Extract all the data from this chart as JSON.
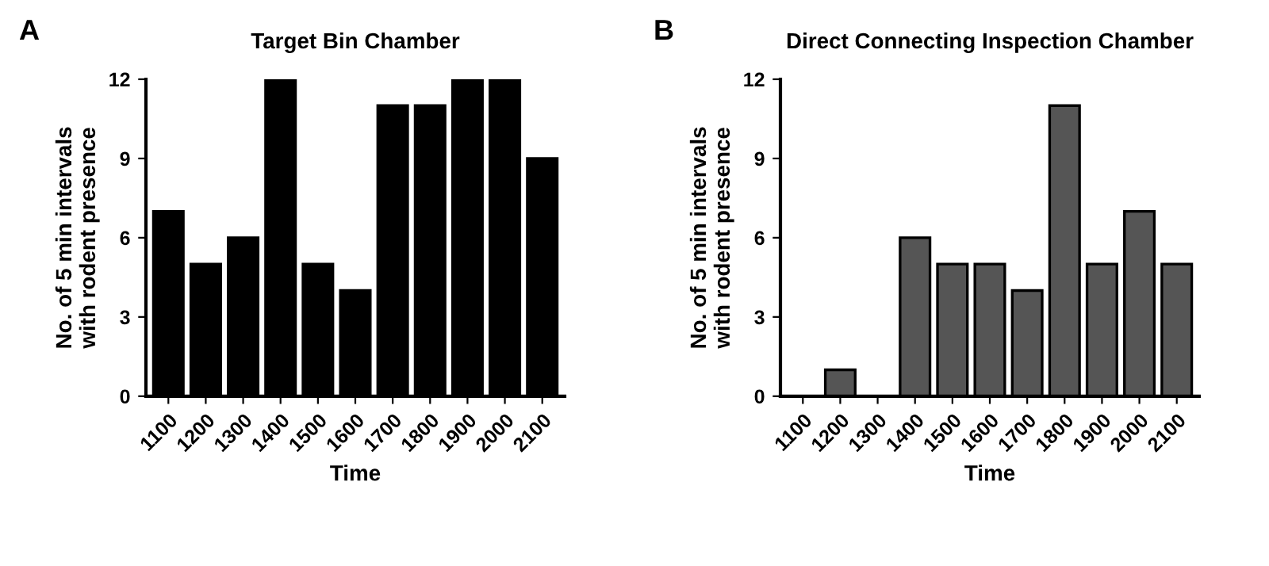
{
  "chart_data": [
    {
      "type": "bar",
      "title": "Target Bin Chamber",
      "xlabel": "Time",
      "ylabel": "No. of 5 min intervals\nwith rodent presence",
      "annotations": [
        "A"
      ],
      "categories": [
        "1100",
        "1200",
        "1300",
        "1400",
        "1500",
        "1600",
        "1700",
        "1800",
        "1900",
        "2000",
        "2100"
      ],
      "series": [
        {
          "color": "#000000",
          "values": [
            7,
            5,
            6,
            12,
            5,
            4,
            11,
            11,
            12,
            12,
            9
          ]
        }
      ],
      "ylim": [
        0,
        12
      ],
      "yticks": [
        0,
        3,
        6,
        9,
        12
      ],
      "grid": false,
      "legend": false
    },
    {
      "type": "bar",
      "title": "Direct Connecting Inspection Chamber",
      "xlabel": "Time",
      "ylabel": "No. of 5 min intervals\nwith rodent presence",
      "annotations": [
        "B"
      ],
      "categories": [
        "1100",
        "1200",
        "1300",
        "1400",
        "1500",
        "1600",
        "1700",
        "1800",
        "1900",
        "2000",
        "2100"
      ],
      "series": [
        {
          "color": "#555555",
          "values": [
            0,
            1,
            0,
            6,
            5,
            5,
            4,
            11,
            5,
            7,
            5
          ]
        }
      ],
      "ylim": [
        0,
        12
      ],
      "yticks": [
        0,
        3,
        6,
        9,
        12
      ],
      "grid": false,
      "legend": false
    }
  ]
}
